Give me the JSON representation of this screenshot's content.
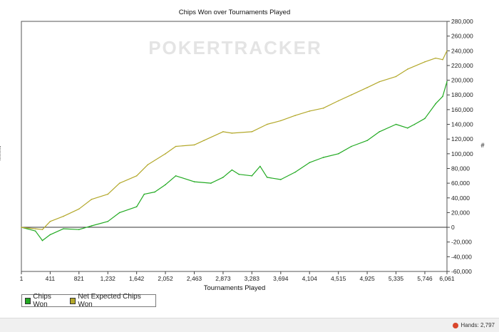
{
  "chart_data": {
    "type": "line",
    "title": "Chips Won over Tournaments Played",
    "xlabel": "Tournaments Played",
    "ylabel": "#",
    "watermark": "POKERTRACKER",
    "x_ticks": [
      "1",
      "411",
      "821",
      "1,232",
      "1,642",
      "2,052",
      "2,463",
      "2,873",
      "3,283",
      "3,694",
      "4,104",
      "4,515",
      "4,925",
      "5,335",
      "5,746",
      "6,061"
    ],
    "y_ticks": [
      "280,000",
      "260,000",
      "240,000",
      "220,000",
      "200,000",
      "180,000",
      "160,000",
      "140,000",
      "120,000",
      "100,000",
      "80,000",
      "60,000",
      "40,000",
      "20,000",
      "0",
      "-20,000",
      "-40,000",
      "-60,000"
    ],
    "xlim": [
      1,
      6061
    ],
    "ylim": [
      -60000,
      280000
    ],
    "grid": false,
    "legend_position": "bottom-left",
    "series": [
      {
        "name": "Chips Won",
        "color": "#22aa22",
        "x": [
          1,
          200,
          300,
          411,
          600,
          821,
          1000,
          1232,
          1400,
          1642,
          1750,
          1900,
          2052,
          2200,
          2463,
          2700,
          2873,
          3000,
          3100,
          3283,
          3400,
          3500,
          3694,
          3900,
          4104,
          4300,
          4515,
          4700,
          4925,
          5100,
          5335,
          5500,
          5600,
          5746,
          5900,
          6000,
          6061
        ],
        "y": [
          0,
          -5000,
          -18000,
          -10000,
          -2000,
          -3000,
          2000,
          8000,
          20000,
          28000,
          45000,
          48000,
          58000,
          70000,
          62000,
          60000,
          68000,
          78000,
          72000,
          70000,
          83000,
          68000,
          65000,
          75000,
          88000,
          95000,
          100000,
          110000,
          118000,
          130000,
          140000,
          135000,
          140000,
          148000,
          168000,
          178000,
          198000
        ]
      },
      {
        "name": "Net Expected Chips Won",
        "color": "#b3a82a",
        "x": [
          1,
          200,
          300,
          411,
          600,
          821,
          1000,
          1232,
          1400,
          1642,
          1800,
          2052,
          2200,
          2463,
          2600,
          2873,
          3000,
          3283,
          3500,
          3694,
          3900,
          4104,
          4300,
          4515,
          4700,
          4925,
          5100,
          5335,
          5500,
          5746,
          5900,
          6000,
          6061
        ],
        "y": [
          0,
          -2000,
          -3000,
          8000,
          15000,
          25000,
          38000,
          45000,
          60000,
          70000,
          85000,
          100000,
          110000,
          112000,
          118000,
          130000,
          128000,
          130000,
          140000,
          145000,
          152000,
          158000,
          162000,
          172000,
          180000,
          190000,
          198000,
          205000,
          215000,
          225000,
          230000,
          228000,
          240000
        ]
      }
    ]
  },
  "status": {
    "hands": "Hands: 2,797"
  }
}
